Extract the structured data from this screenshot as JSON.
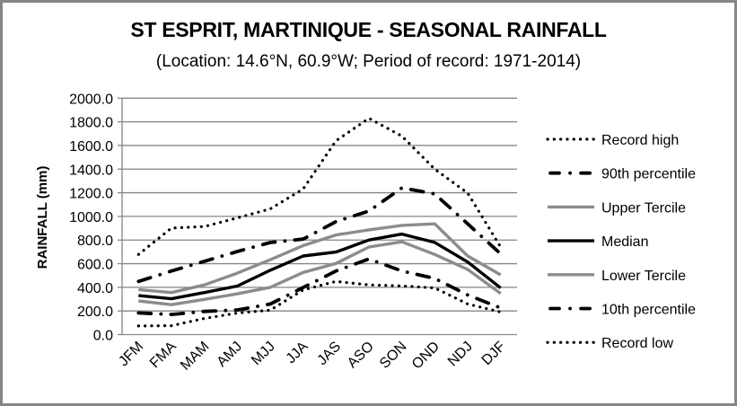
{
  "chart_data": {
    "type": "line",
    "title": "ST ESPRIT, MARTINIQUE - SEASONAL RAINFALL",
    "subtitle": "(Location: 14.6°N, 60.9°W; Period of record: 1971-2014)",
    "xlabel": "",
    "ylabel": "RAINFALL (mm)",
    "ylim": [
      0,
      2000
    ],
    "yticks": [
      "0.0",
      "200.0",
      "400.0",
      "600.0",
      "800.0",
      "1000.0",
      "1200.0",
      "1400.0",
      "1600.0",
      "1800.0",
      "2000.0"
    ],
    "ytick_values": [
      0,
      200,
      400,
      600,
      800,
      1000,
      1200,
      1400,
      1600,
      1800,
      2000
    ],
    "grid": true,
    "legend_position": "right",
    "categories": [
      "JFM",
      "FMA",
      "MAM",
      "AMJ",
      "MJJ",
      "JJA",
      "JAS",
      "ASO",
      "SON",
      "OND",
      "NDJ",
      "DJF"
    ],
    "series": [
      {
        "name": "Record high",
        "style": "dotted",
        "color": "#000000",
        "values": [
          678,
          901,
          914,
          987,
          1063,
          1232,
          1640,
          1830,
          1679,
          1400,
          1197,
          741
        ]
      },
      {
        "name": "90th percentile",
        "style": "dash-dot",
        "color": "#000000",
        "values": [
          450,
          538,
          620,
          703,
          779,
          808,
          956,
          1045,
          1241,
          1190,
          937,
          683
        ]
      },
      {
        "name": "Upper Tercile",
        "style": "solid",
        "color": "#8c8c8c",
        "values": [
          381,
          356,
          420,
          520,
          633,
          753,
          843,
          886,
          924,
          937,
          665,
          505
        ]
      },
      {
        "name": "Median",
        "style": "solid",
        "color": "#000000",
        "values": [
          330,
          303,
          356,
          410,
          544,
          665,
          698,
          800,
          850,
          780,
          614,
          394
        ]
      },
      {
        "name": "Lower Tercile",
        "style": "solid",
        "color": "#8c8c8c",
        "values": [
          285,
          253,
          298,
          345,
          400,
          526,
          602,
          741,
          785,
          678,
          551,
          348
        ]
      },
      {
        "name": "10th percentile",
        "style": "dash-dot",
        "color": "#000000",
        "values": [
          183,
          170,
          196,
          208,
          258,
          398,
          538,
          640,
          538,
          475,
          335,
          226
        ]
      },
      {
        "name": "Record low",
        "style": "dotted",
        "color": "#000000",
        "values": [
          73,
          75,
          137,
          182,
          207,
          378,
          450,
          420,
          412,
          394,
          259,
          191
        ]
      }
    ]
  }
}
